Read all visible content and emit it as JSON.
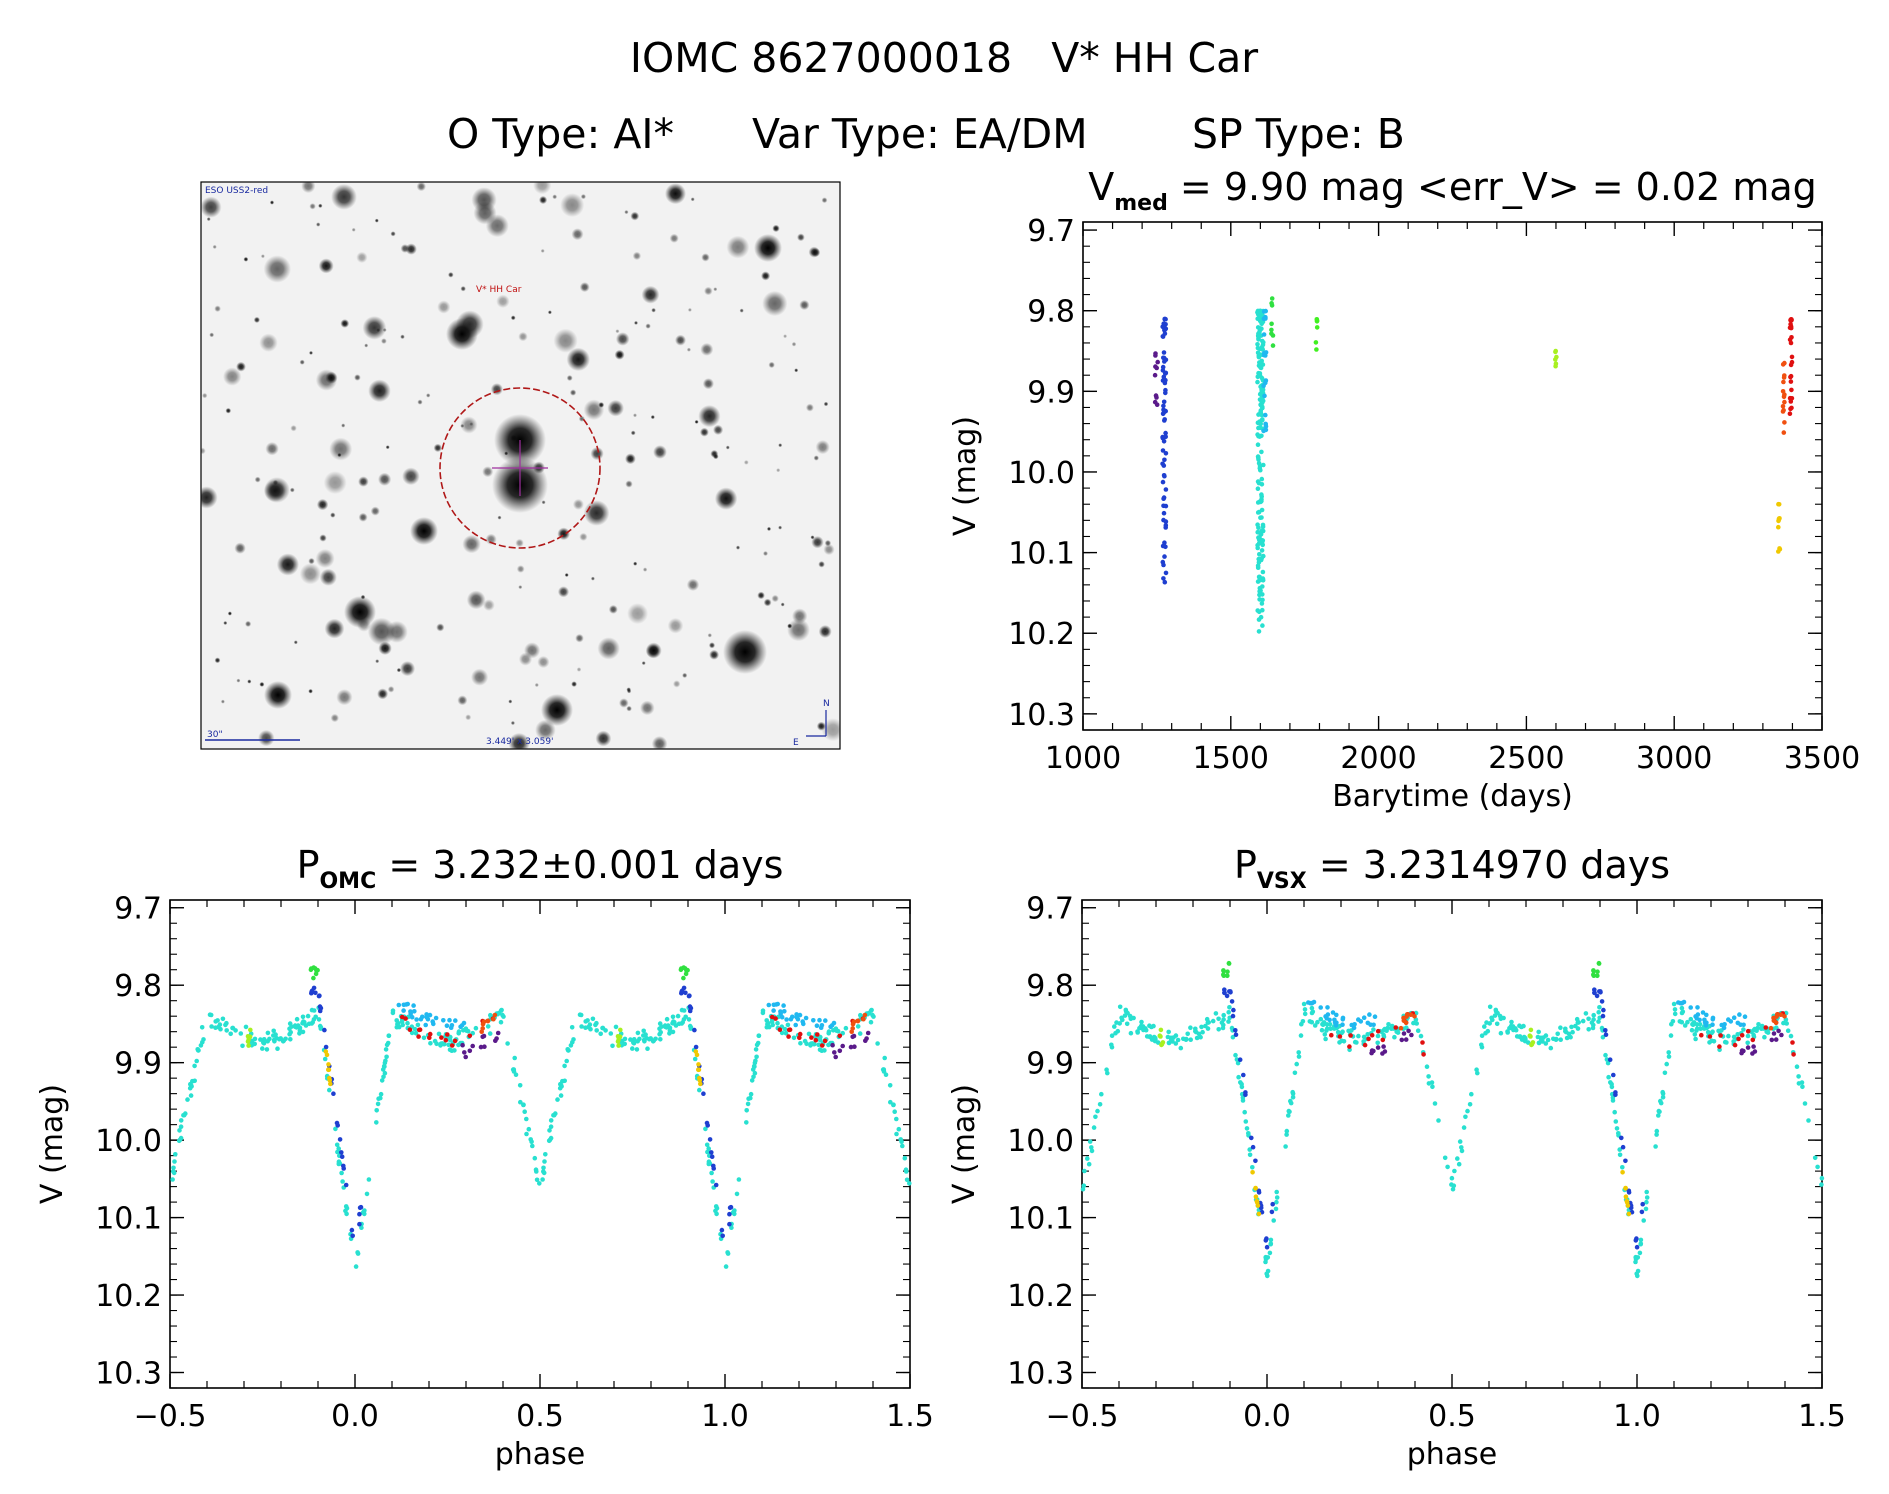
{
  "header": {
    "title_line1": "IOMC 8627000018   V* HH Car",
    "otype_label": "O Type: AI*",
    "vartype_label": "Var Type: EA/DM",
    "sptype_label": "SP Type: B"
  },
  "finder_chart": {
    "survey_label": "ESO USS2-red",
    "target_label": "V* HH Car",
    "scale_label": "30\"",
    "size_label": "3.449' x 3.059'",
    "north_label": "N",
    "east_label": "E",
    "colors": {
      "circle": "#b01818",
      "cross": "#a030a0",
      "scale": "#1a2aa0"
    }
  },
  "chart_data": [
    {
      "id": "lightcurve-time",
      "type": "scatter",
      "title_main": "V",
      "title_sub": "med",
      "title_rest": " = 9.90 mag <err_V> = 0.02 mag",
      "xlabel": "Barytime (days)",
      "ylabel": "V (mag)",
      "xlim": [
        1000,
        3500
      ],
      "ylim": [
        10.32,
        9.69
      ],
      "y_inverted": true,
      "xticks": [
        1000,
        1500,
        2000,
        2500,
        3000,
        3500
      ],
      "xtick_labels": [
        "1000",
        "1500",
        "2000",
        "2500",
        "3000",
        "3500"
      ],
      "yticks": [
        9.7,
        9.8,
        9.9,
        10.0,
        10.1,
        10.2,
        10.3
      ],
      "ytick_labels": [
        "9.7",
        "9.8",
        "9.9",
        "10.0",
        "10.1",
        "10.2",
        "10.3"
      ],
      "clusters": [
        {
          "name": "epoch-1",
          "x_center": 1250,
          "x_width": 12,
          "y_min": 9.85,
          "y_max": 9.92,
          "count": 10,
          "color": "#5a1a8a"
        },
        {
          "name": "epoch-2",
          "x_center": 1275,
          "x_width": 12,
          "y_min": 9.81,
          "y_max": 10.15,
          "count": 70,
          "color": "#1f3fd0"
        },
        {
          "name": "epoch-3",
          "x_center": 1600,
          "x_width": 20,
          "y_min": 9.8,
          "y_max": 10.2,
          "count": 190,
          "color": "#28e0d0"
        },
        {
          "name": "epoch-4",
          "x_center": 1615,
          "x_width": 12,
          "y_min": 9.8,
          "y_max": 9.95,
          "count": 20,
          "color": "#20b8f0"
        },
        {
          "name": "epoch-5",
          "x_center": 1640,
          "x_width": 6,
          "y_min": 9.78,
          "y_max": 9.85,
          "count": 8,
          "color": "#30e040"
        },
        {
          "name": "epoch-6",
          "x_center": 1790,
          "x_width": 6,
          "y_min": 9.81,
          "y_max": 9.85,
          "count": 6,
          "color": "#40f020"
        },
        {
          "name": "epoch-7",
          "x_center": 2600,
          "x_width": 6,
          "y_min": 9.85,
          "y_max": 9.87,
          "count": 6,
          "color": "#a8f020"
        },
        {
          "name": "epoch-8",
          "x_center": 3355,
          "x_width": 6,
          "y_min": 10.04,
          "y_max": 10.11,
          "count": 10,
          "color": "#f0c800"
        },
        {
          "name": "epoch-9",
          "x_center": 3370,
          "x_width": 6,
          "y_min": 9.86,
          "y_max": 9.96,
          "count": 14,
          "color": "#f05010"
        },
        {
          "name": "epoch-10",
          "x_center": 3395,
          "x_width": 8,
          "y_min": 9.81,
          "y_max": 9.93,
          "count": 26,
          "color": "#e01010"
        }
      ]
    },
    {
      "id": "phase-omc",
      "type": "scatter",
      "title_main": "P",
      "title_sub": "OMC",
      "title_rest": " = 3.232±0.001 days",
      "xlabel": "phase",
      "ylabel": "V (mag)",
      "xlim": [
        -0.5,
        1.5
      ],
      "ylim": [
        10.32,
        9.69
      ],
      "y_inverted": true,
      "xticks": [
        -0.5,
        0.0,
        0.5,
        1.0,
        1.5
      ],
      "xtick_labels": [
        "−0.5",
        "0.0",
        "0.5",
        "1.0",
        "1.5"
      ],
      "yticks": [
        9.7,
        9.8,
        9.9,
        10.0,
        10.1,
        10.2,
        10.3
      ],
      "ytick_labels": [
        "9.7",
        "9.8",
        "9.9",
        "10.0",
        "10.1",
        "10.2",
        "10.3"
      ],
      "period_days": 3.232,
      "curve": {
        "primary_min_phase": 0.0,
        "primary_depth_mag": 10.17,
        "secondary_min_phase": 0.5,
        "secondary_depth_mag": 10.06,
        "max_mag": 9.82
      },
      "groups": [
        {
          "color": "#28e0d0",
          "count": 260,
          "phase_range": [
            0.0,
            1.0
          ],
          "scatter": 0.02
        },
        {
          "color": "#1f3fd0",
          "count": 30,
          "phase_range": [
            -0.12,
            0.02
          ],
          "offset": -0.03
        },
        {
          "color": "#20b8f0",
          "count": 30,
          "phase_range": [
            0.1,
            0.3
          ],
          "offset": -0.02
        },
        {
          "color": "#e01010",
          "count": 16,
          "phase_range": [
            0.12,
            0.4
          ],
          "offset": 0.0
        },
        {
          "color": "#5a1a8a",
          "count": 12,
          "phase_range": [
            0.28,
            0.4
          ],
          "offset": 0.02
        },
        {
          "color": "#f05010",
          "count": 8,
          "phase_range": [
            0.34,
            0.38
          ],
          "offset": 0.0
        },
        {
          "color": "#f0c800",
          "count": 8,
          "phase_range": [
            -0.08,
            -0.06
          ],
          "offset": -0.02
        },
        {
          "color": "#30e040",
          "count": 8,
          "phase_range": [
            -0.12,
            -0.1
          ],
          "offset": -0.06
        },
        {
          "color": "#a8f020",
          "count": 6,
          "phase_range": [
            0.71,
            0.72
          ],
          "offset": 0.0
        }
      ]
    },
    {
      "id": "phase-vsx",
      "type": "scatter",
      "title_main": "P",
      "title_sub": "VSX",
      "title_rest": " = 3.2314970 days",
      "xlabel": "phase",
      "ylabel": "V (mag)",
      "xlim": [
        -0.5,
        1.5
      ],
      "ylim": [
        10.32,
        9.69
      ],
      "y_inverted": true,
      "xticks": [
        -0.5,
        0.0,
        0.5,
        1.0,
        1.5
      ],
      "xtick_labels": [
        "−0.5",
        "0.0",
        "0.5",
        "1.0",
        "1.5"
      ],
      "yticks": [
        9.7,
        9.8,
        9.9,
        10.0,
        10.1,
        10.2,
        10.3
      ],
      "ytick_labels": [
        "9.7",
        "9.8",
        "9.9",
        "10.0",
        "10.1",
        "10.2",
        "10.3"
      ],
      "period_days": 3.231497,
      "curve": {
        "primary_min_phase": 0.0,
        "primary_depth_mag": 10.17,
        "secondary_min_phase": 0.5,
        "secondary_depth_mag": 10.06,
        "max_mag": 9.82
      },
      "groups": [
        {
          "color": "#28e0d0",
          "count": 260,
          "phase_range": [
            0.0,
            1.0
          ],
          "scatter": 0.02
        },
        {
          "color": "#1f3fd0",
          "count": 30,
          "phase_range": [
            -0.12,
            0.02
          ],
          "offset": -0.03
        },
        {
          "color": "#20b8f0",
          "count": 30,
          "phase_range": [
            0.1,
            0.3
          ],
          "offset": -0.02
        },
        {
          "color": "#e01010",
          "count": 16,
          "phase_range": [
            0.16,
            0.44
          ],
          "offset": 0.0
        },
        {
          "color": "#5a1a8a",
          "count": 12,
          "phase_range": [
            0.28,
            0.4
          ],
          "offset": 0.02
        },
        {
          "color": "#f05010",
          "count": 8,
          "phase_range": [
            0.36,
            0.4
          ],
          "offset": 0.0
        },
        {
          "color": "#f0c800",
          "count": 8,
          "phase_range": [
            -0.04,
            -0.02
          ],
          "offset": 0.0
        },
        {
          "color": "#30e040",
          "count": 8,
          "phase_range": [
            -0.12,
            -0.1
          ],
          "offset": -0.06
        },
        {
          "color": "#a8f020",
          "count": 6,
          "phase_range": [
            0.71,
            0.72
          ],
          "offset": 0.0
        }
      ]
    }
  ]
}
